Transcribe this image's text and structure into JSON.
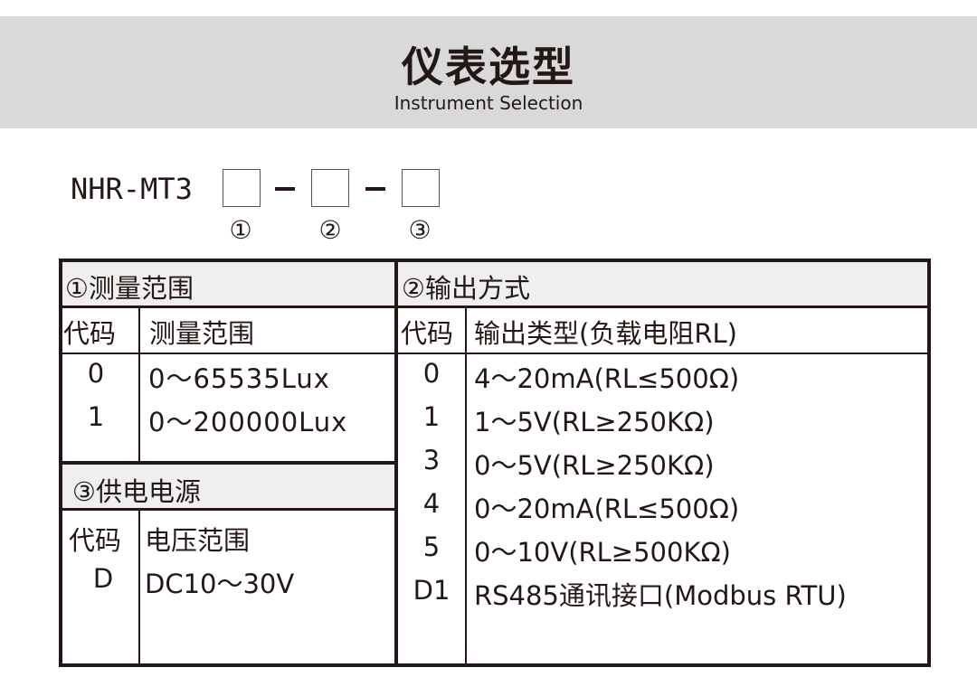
{
  "header": {
    "title": "仪表选型",
    "subtitle": "Instrument Selection"
  },
  "model": {
    "prefix": "NHR-MT3",
    "dash": "-",
    "markers": [
      "①",
      "②",
      "③"
    ]
  },
  "range": {
    "section": "①测量范围",
    "col_code": "代码",
    "col_value": "测量范围",
    "rows": [
      {
        "code": "0",
        "value": "0～65535Lux"
      },
      {
        "code": "1",
        "value": "0～200000Lux"
      }
    ]
  },
  "output": {
    "section": "②输出方式",
    "col_code": "代码",
    "col_value": "输出类型(负载电阻RL)",
    "rows": [
      {
        "code": "0",
        "value": "4～20mA(RL≤500Ω)"
      },
      {
        "code": "1",
        "value": "1～5V(RL≥250KΩ)"
      },
      {
        "code": "3",
        "value": "0～5V(RL≥250KΩ)"
      },
      {
        "code": "4",
        "value": "0～20mA(RL≤500Ω)"
      },
      {
        "code": "5",
        "value": "0～10V(RL≥500KΩ)"
      },
      {
        "code": "D1",
        "value": "RS485通讯接口(Modbus RTU)"
      }
    ]
  },
  "power": {
    "section": "③供电电源",
    "col_code": "代码",
    "col_value": "电压范围",
    "rows": [
      {
        "code": "D",
        "value": "DC10～30V"
      }
    ]
  }
}
